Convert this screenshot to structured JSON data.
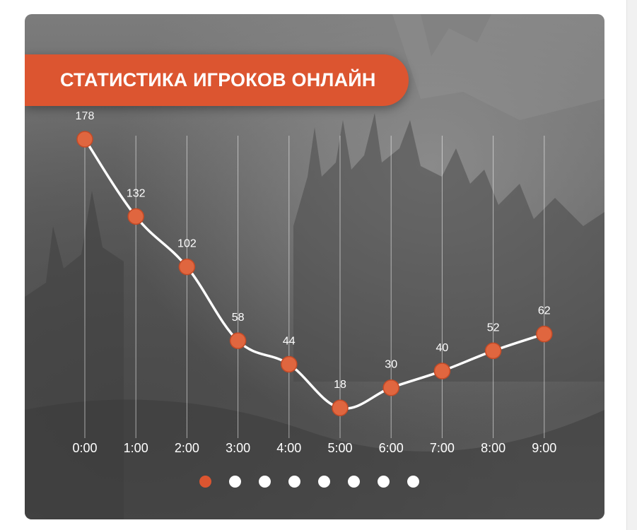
{
  "title": "СТАТИСТИКА ИГРОКОВ ОНЛАЙН",
  "colors": {
    "accent": "#dc5530",
    "line": "#ffffff",
    "point_fill": "#e0663f",
    "point_stroke": "#c44a26"
  },
  "chart_data": {
    "type": "line",
    "title": "СТАТИСТИКА ИГРОКОВ ОНЛАЙН",
    "xlabel": "",
    "ylabel": "",
    "categories": [
      "0:00",
      "1:00",
      "2:00",
      "3:00",
      "4:00",
      "5:00",
      "6:00",
      "7:00",
      "8:00",
      "9:00"
    ],
    "values": [
      178,
      132,
      102,
      58,
      44,
      18,
      30,
      40,
      52,
      62
    ],
    "ylim": [
      0,
      178
    ],
    "grid": "vertical",
    "data_labels": true,
    "smooth": true
  },
  "pagination": {
    "count": 8,
    "active_index": 0
  }
}
